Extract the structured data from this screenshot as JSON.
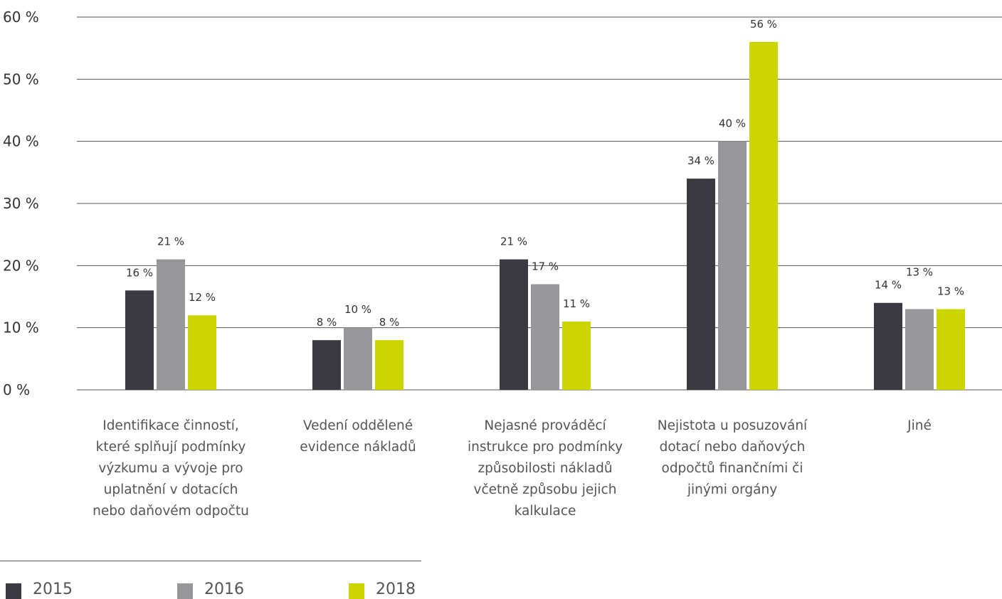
{
  "chart_data": {
    "type": "bar",
    "categories": [
      "Identifikace činností, které splňují podmínky výzkumu a vývoje pro uplatnění v dotacích nebo daňovém odpočtu",
      "Vedení oddělené evidence nákladů",
      "Nejasné prováděcí instrukce pro podmínky způsobilosti nákladů včetně způsobu jejich kalkulace",
      "Nejistota u posuzování dotací nebo daňových odpočtů finančními či jinými orgány",
      "Jiné"
    ],
    "category_lines": [
      [
        "Identifikace činností,",
        "které splňují podmínky",
        "výzkumu a vývoje pro",
        "uplatnění v dotacích",
        "nebo daňovém odpočtu"
      ],
      [
        "Vedení oddělené",
        "evidence nákladů"
      ],
      [
        "Nejasné prováděcí",
        "instrukce pro podmínky",
        "způsobilosti nákladů",
        "včetně způsobu jejich",
        "kalkulace"
      ],
      [
        "Nejistota u posuzování",
        "dotací nebo daňových",
        "odpočtů finančními či",
        "jinými orgány"
      ],
      [
        "Jiné"
      ]
    ],
    "series": [
      {
        "name": "2015",
        "color": "#393a42",
        "values": [
          16,
          8,
          21,
          34,
          14
        ],
        "labels": [
          "16 %",
          "8 %",
          "21 %",
          "34 %",
          "14 %"
        ]
      },
      {
        "name": "2016",
        "color": "#96979b",
        "values": [
          21,
          10,
          17,
          40,
          13
        ],
        "labels": [
          "21 %",
          "10 %",
          "17 %",
          "40 %",
          "13 %"
        ]
      },
      {
        "name": "2018",
        "color": "#cdd500",
        "values": [
          12,
          8,
          11,
          56,
          13
        ],
        "labels": [
          "12 %",
          "8 %",
          "11 %",
          "56 %",
          "13 %"
        ]
      }
    ],
    "y_ticks": [
      0,
      10,
      20,
      30,
      40,
      50,
      60
    ],
    "y_tick_labels": [
      "0 %",
      "10 %",
      "20 %",
      "30 %",
      "40 %",
      "50 %",
      "60 %"
    ],
    "ylim": [
      0,
      60
    ],
    "grid": true,
    "legend_position": "bottom-left"
  }
}
